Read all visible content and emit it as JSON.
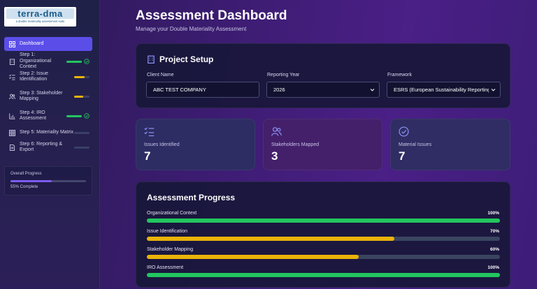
{
  "logo": {
    "name": "terra-dma",
    "tagline": "a double materiality assessment suite"
  },
  "sidebar": {
    "items": [
      {
        "label": "Dashboard",
        "icon": "dashboard-icon",
        "active": true
      },
      {
        "label": "Step 1: Organizational Context",
        "icon": "building-icon",
        "progress": 1.0,
        "color": "#22c55e",
        "done": true
      },
      {
        "label": "Step 2: Issue Identification",
        "icon": "checklist-icon",
        "progress": 0.7,
        "color": "#eab308",
        "done": false
      },
      {
        "label": "Step 3: Stakeholder Mapping",
        "icon": "users-icon",
        "progress": 0.6,
        "color": "#eab308",
        "done": false
      },
      {
        "label": "Step 4: IRO Assessment",
        "icon": "bar-chart-icon",
        "progress": 1.0,
        "color": "#22c55e",
        "done": true
      },
      {
        "label": "Step 5: Materiality Matrix",
        "icon": "grid-icon",
        "progress": 0,
        "color": "#3b3f66",
        "done": false
      },
      {
        "label": "Step 6: Reporting & Export",
        "icon": "document-icon",
        "progress": 0,
        "color": "#3b3f66",
        "done": false
      }
    ],
    "overall": {
      "title": "Overall Progress",
      "value": 0.55,
      "label": "55% Complete"
    }
  },
  "header": {
    "title": "Assessment Dashboard",
    "subtitle": "Manage your Double Materiality Assessment"
  },
  "setup": {
    "title": "Project Setup",
    "client_label": "Client Name",
    "client_value": "ABC TEST COMPANY",
    "year_label": "Reporting Year",
    "year_value": "2026",
    "framework_label": "Framework",
    "framework_value": "ESRS (European Sustainability Reporting Standards)"
  },
  "stats": [
    {
      "label": "Issues Identified",
      "value": "7",
      "icon": "checklist-icon",
      "bg": "#2d2c63"
    },
    {
      "label": "Stakeholders Mapped",
      "value": "3",
      "icon": "users-icon",
      "bg": "#44206b"
    },
    {
      "label": "Material Issues",
      "value": "7",
      "icon": "check-circle-icon",
      "bg": "#2f2d63"
    }
  ],
  "assessment": {
    "title": "Assessment Progress",
    "rows": [
      {
        "label": "Organizational Context",
        "pct": "100%",
        "value": 1.0,
        "color": "#22c55e"
      },
      {
        "label": "Issue Identification",
        "pct": "70%",
        "value": 0.7,
        "color": "#eab308"
      },
      {
        "label": "Stakeholder Mapping",
        "pct": "60%",
        "value": 0.6,
        "color": "#eab308"
      },
      {
        "label": "IRO Assessment",
        "pct": "100%",
        "value": 1.0,
        "color": "#22c55e"
      }
    ]
  }
}
